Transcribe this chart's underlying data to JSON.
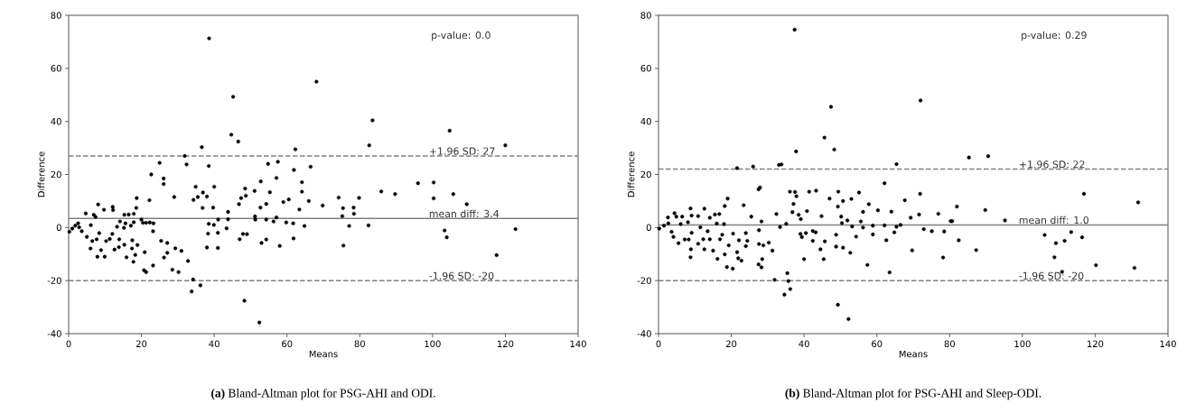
{
  "chart_data": [
    {
      "type": "scatter",
      "xlabel": "Means",
      "ylabel": "Difference",
      "color": "#000000",
      "marker": "circle",
      "xlim": [
        0,
        140
      ],
      "ylim": [
        -40,
        80
      ],
      "xticks": [
        0,
        20,
        40,
        60,
        80,
        100,
        120,
        140
      ],
      "yticks": [
        -40,
        -20,
        0,
        20,
        40,
        60,
        80
      ],
      "x": [
        38.6,
        45.2,
        44.7,
        46.6,
        68.1,
        36.6,
        31.9,
        25,
        32.4,
        38.5,
        62.3,
        54.8,
        57.5,
        61.9,
        66.5,
        22.7,
        26.1,
        26.1,
        40,
        34.9,
        36.9,
        64.1,
        57.1,
        52.8,
        48.5,
        51.1,
        55.3,
        64.1,
        29,
        18.7,
        22.2,
        8.1,
        12.1,
        34.3,
        35.5,
        38,
        36.8,
        39.7,
        43.8,
        46.8,
        47.4,
        48.7,
        52.7,
        54.3,
        59,
        60.5,
        63.4,
        66,
        69.8,
        51.2,
        51.3,
        54.3,
        56.3,
        57.1,
        59.8,
        61.7,
        64.8,
        61.8,
        58,
        53,
        54.3,
        47.9,
        49,
        47,
        43.8,
        41.1,
        38.5,
        39.9,
        38.3,
        41,
        43.4,
        38,
        41,
        52.4,
        48.3,
        36.2,
        33.8,
        34.2,
        32.8,
        31,
        29.3,
        27.1,
        25.4,
        27.1,
        26.2,
        28.5,
        30.2,
        23.2,
        20.7,
        21.3,
        17.8,
        15.9,
        18.3,
        20.9,
        17.4,
        18.9,
        15.3,
        13.8,
        12.6,
        9.9,
        7.9,
        8.9,
        6,
        10.3,
        11.3,
        17.5,
        13.9,
        23.2,
        22.3,
        20.4,
        17.9,
        15.3,
        16.5,
        18.6,
        17.9,
        12.2,
        9.7,
        4.7,
        6.9,
        7.4,
        6.1,
        1,
        2.6,
        3.6,
        5,
        6.5,
        7.7,
        8.4,
        12,
        13.3,
        15.2,
        17.1,
        20,
        21.3,
        23.3,
        15.6,
        14.1,
        0.2,
        1.8,
        2.9,
        83.5,
        82.6,
        104.7,
        120,
        96,
        100.3,
        100.3,
        105.7,
        109.4,
        85.9,
        89.7,
        79.8,
        74.2,
        75.4,
        78.3,
        78.4,
        75.2,
        77.1,
        82.4,
        75.5,
        103.3,
        103.9,
        117.6,
        122.8
      ],
      "values": [
        71.3,
        49.3,
        35,
        32.4,
        55,
        30.3,
        27,
        24.4,
        23.8,
        23.2,
        29.5,
        24,
        24.8,
        21.7,
        22.9,
        20,
        18.5,
        16.4,
        15.4,
        15.4,
        13.2,
        17.1,
        18.7,
        17.4,
        14.7,
        13.8,
        13.3,
        13.5,
        11.5,
        11.1,
        10.3,
        8.7,
        7.8,
        10.4,
        11.5,
        11.7,
        7.4,
        7.5,
        5.9,
        8.8,
        11.1,
        12,
        7.5,
        8.9,
        9.6,
        10.6,
        6.8,
        10,
        8.3,
        4.2,
        3,
        3,
        2.3,
        3.8,
        1.9,
        1.6,
        0.6,
        -4.1,
        -6.9,
        -5.8,
        -4.5,
        -2.4,
        -2.5,
        -4.4,
        3.1,
        3,
        1.4,
        1,
        -2.3,
        -2,
        -0.3,
        -7.5,
        -7.7,
        -35.8,
        -27.6,
        -21.8,
        -24.1,
        -19.6,
        -12.6,
        -8.8,
        -7.8,
        -5.8,
        -5,
        -9.5,
        -11.3,
        -15.9,
        -16.8,
        -14.3,
        -16.1,
        -16.8,
        -12.9,
        -11.2,
        -10.3,
        -9.3,
        -7.9,
        -6.6,
        -6.5,
        -7.4,
        -8.3,
        -11,
        -11,
        -8.5,
        -7.9,
        -5.1,
        -4.3,
        -4.8,
        -4.4,
        -1.4,
        1.9,
        1.8,
        2,
        4.8,
        4.9,
        7.4,
        5.2,
        6.6,
        6.7,
        5.3,
        4.8,
        4,
        0.9,
        -0.4,
        1.6,
        -1.4,
        -3.5,
        -5.1,
        -4.4,
        -2.1,
        -2.4,
        0.3,
        -0.1,
        0.7,
        3,
        1.8,
        1.6,
        1.6,
        2.3,
        -1.6,
        0.7,
        0.1,
        40.4,
        31,
        36.5,
        31,
        16.7,
        17,
        11,
        12.6,
        8.8,
        13.6,
        12.6,
        11.2,
        11.3,
        7.3,
        7.5,
        5.2,
        4.3,
        0.6,
        0.8,
        -6.8,
        -1.1,
        -3.7,
        -10.4,
        -0.6
      ],
      "ref_lines": [
        {
          "axis": "y",
          "value": 27,
          "label": "+1.96 SD: 27",
          "color": "#808080",
          "line_style": "dashed"
        },
        {
          "axis": "y",
          "value": 3.4,
          "label": "mean diff: 3.4",
          "color": "#808080",
          "line_style": "solid"
        },
        {
          "axis": "y",
          "value": -20,
          "label": "-1.96 SD: -20",
          "color": "#808080",
          "line_style": "dashed"
        }
      ],
      "annotations": [
        "p-value: 0.0",
        "**(a)** Bland-Altman plot for PSG-AHI and ODI."
      ]
    },
    {
      "type": "scatter",
      "xlabel": "Means",
      "ylabel": "Difference",
      "color": "#000000",
      "marker": "circle",
      "xlim": [
        0,
        140
      ],
      "ylim": [
        -40,
        80
      ],
      "xticks": [
        0,
        20,
        40,
        60,
        80,
        100,
        120,
        140
      ],
      "yticks": [
        -40,
        -20,
        0,
        20,
        40,
        60,
        80
      ],
      "x": [
        37.4,
        47.4,
        45.6,
        48.3,
        37.8,
        21.6,
        26,
        33.1,
        33.8,
        65.4,
        62.1,
        27.5,
        27.9,
        36.1,
        37.5,
        37.9,
        41.4,
        43.3,
        49.4,
        47,
        50.7,
        53,
        55.1,
        67.7,
        37.1,
        49.3,
        57.8,
        60.3,
        64,
        56.2,
        36.8,
        38.5,
        39.1,
        40.8,
        44.8,
        50.2,
        32.4,
        25.5,
        23.4,
        19,
        18.2,
        28.3,
        35.1,
        33.4,
        50.4,
        51.9,
        55.6,
        53.2,
        56.2,
        58.9,
        62.1,
        65.4,
        66.5,
        69.3,
        27.6,
        24,
        24.4,
        22.1,
        24,
        19.3,
        20.5,
        18.2,
        21.6,
        21.9,
        22.8,
        18.8,
        20.4,
        27.6,
        28.8,
        30.3,
        31.3,
        28.5,
        27.5,
        28.3,
        31.9,
        35.4,
        35.7,
        36.2,
        34.6,
        49.3,
        52.2,
        39,
        39.4,
        40.5,
        40,
        42.4,
        43.2,
        42.4,
        44.5,
        45.7,
        45.4,
        48.8,
        48.8,
        50.7,
        52.7,
        54.3,
        57.4,
        58.9,
        62.6,
        63.5,
        64.8,
        69.7,
        0.2,
        2.6,
        4.4,
        4.9,
        6.5,
        8.8,
        12.6,
        15.5,
        16.7,
        9.1,
        10.9,
        14.1,
        8.1,
        3.6,
        4.1,
        5.5,
        7.2,
        8.3,
        8.9,
        8.8,
        10.9,
        9.1,
        12.6,
        12.3,
        15,
        16.2,
        14.1,
        16.9,
        17.5,
        18,
        13.5,
        11.5,
        16,
        1.5,
        2.7,
        6.1,
        72,
        85.3,
        90.6,
        116.9,
        131.8,
        89.8,
        95.2,
        82,
        76.9,
        80.3,
        80.7,
        71.6,
        71.9,
        72.9,
        75.1,
        78.5,
        82.5,
        78.2,
        87.3,
        106.1,
        109.2,
        111.6,
        113.4,
        116.4,
        108.8,
        110.9,
        120.2,
        130.8
      ],
      "values": [
        74.6,
        45.5,
        33.9,
        29.4,
        28.7,
        22.4,
        23,
        23.6,
        23.8,
        23.9,
        16.7,
        14.4,
        15.1,
        13.5,
        13.4,
        11.8,
        13.5,
        13.9,
        13.5,
        10.9,
        10,
        10.8,
        13.2,
        10.3,
        8.9,
        7.9,
        8.8,
        6.5,
        6,
        5.9,
        5.8,
        4.8,
        3.2,
        6.2,
        4.3,
        4.1,
        5.1,
        4.1,
        8.4,
        10.9,
        8.1,
        2.3,
        1.4,
        0.2,
        1.7,
        2.7,
        2.3,
        0.4,
        0,
        0.7,
        0.8,
        0.3,
        1,
        3.7,
        -1,
        -2.1,
        -5,
        -4.8,
        -7,
        -6.7,
        -2.3,
        -10.1,
        -9.3,
        -11.6,
        -12.5,
        -14.9,
        -15.5,
        -6.2,
        -6.7,
        -5.7,
        -8.7,
        -11.9,
        -13.9,
        -15,
        -19.7,
        -17.2,
        -20.2,
        -23.2,
        -25.3,
        -29.1,
        -34.5,
        -2.4,
        -3.6,
        -2.1,
        -11.9,
        -1.3,
        -1.8,
        -5,
        -8.2,
        -5.2,
        -11.9,
        -2.7,
        -7.2,
        -7.6,
        -9.5,
        -3.4,
        -14.1,
        -2.6,
        -4.8,
        -16.9,
        -1.8,
        -8.6,
        -0.4,
        3.8,
        5.4,
        4.1,
        4.1,
        7.2,
        7.1,
        4.9,
        5.1,
        4.5,
        4.3,
        3.7,
        2,
        -1.6,
        -3.5,
        -5.9,
        -4.5,
        -4.5,
        -8.2,
        -11.2,
        -6.1,
        -2,
        -8.2,
        -4.4,
        -8.7,
        -11.8,
        -4.4,
        -4.4,
        -2.7,
        1.3,
        -1.4,
        0.1,
        1.5,
        0.7,
        1.6,
        1.3,
        47.9,
        26.4,
        26.9,
        12.7,
        9.5,
        6.6,
        2.7,
        7.9,
        5.2,
        2.4,
        2.4,
        4.9,
        12.7,
        -0.6,
        -1.4,
        -1.5,
        -4.8,
        -11.3,
        -8.5,
        -2.8,
        -5.9,
        -5,
        -1.7,
        -3.7,
        -11.2,
        -16.7,
        -14.2,
        -15.2
      ],
      "ref_lines": [
        {
          "axis": "y",
          "value": 22,
          "label": "+1.96 SD: 22",
          "color": "#808080",
          "line_style": "dashed"
        },
        {
          "axis": "y",
          "value": 1.0,
          "label": "mean diff: 1.0",
          "color": "#808080",
          "line_style": "solid"
        },
        {
          "axis": "y",
          "value": -20,
          "label": "-1.96 SD: -20",
          "color": "#808080",
          "line_style": "dashed"
        }
      ],
      "annotations": [
        "p-value: 0.29",
        "**(b)** Bland-Altman plot for PSG-AHI and Sleep-ODI."
      ]
    }
  ]
}
